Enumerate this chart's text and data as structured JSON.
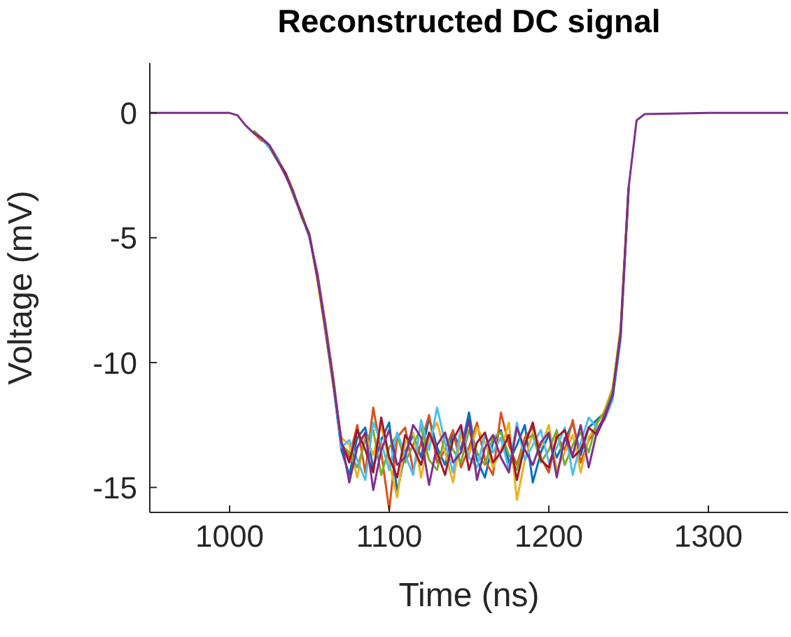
{
  "chart_data": {
    "type": "line",
    "title": "Reconstructed DC signal",
    "xlabel": "Time (ns)",
    "ylabel": "Voltage (mV)",
    "x": [
      950,
      1000,
      1005,
      1010,
      1015,
      1020,
      1025,
      1030,
      1035,
      1040,
      1045,
      1050,
      1055,
      1060,
      1065,
      1070,
      1075,
      1080,
      1085,
      1090,
      1095,
      1100,
      1105,
      1110,
      1115,
      1120,
      1125,
      1130,
      1135,
      1140,
      1145,
      1150,
      1155,
      1160,
      1165,
      1170,
      1175,
      1180,
      1185,
      1190,
      1195,
      1200,
      1205,
      1210,
      1215,
      1220,
      1225,
      1230,
      1235,
      1240,
      1245,
      1250,
      1255,
      1260,
      1300,
      1350
    ],
    "xlim": [
      950,
      1350
    ],
    "xticks": [
      1000,
      1100,
      1200,
      1300
    ],
    "ylim": [
      -16,
      2
    ],
    "yticks": [
      -15,
      -10,
      -5,
      0
    ],
    "grid": false,
    "legend": false,
    "marker": "none",
    "line_style": "solid",
    "series": [
      {
        "color": "#0072bd",
        "values": [
          null,
          null,
          null,
          null,
          -0.8,
          -1.0,
          -1.4,
          -1.9,
          -2.4,
          -3.3,
          -4.1,
          -4.9,
          -6.6,
          -8.6,
          -10.9,
          -13.5,
          -14.5,
          -13.0,
          -12.6,
          -14.2,
          -13.1,
          -12.4,
          -15.2,
          -13.6,
          -12.9,
          -13.8,
          -12.2,
          -13.4,
          -14.1,
          -12.8,
          -13.5,
          -12.0,
          -13.9,
          -14.6,
          -13.2,
          -12.7,
          -14.0,
          -13.3,
          -12.5,
          -14.8,
          -13.6,
          -12.9,
          -13.8,
          -13.1,
          -12.4,
          -13.7,
          -12.6,
          -12.3,
          -12.0,
          -11.2,
          -8.8,
          -3.0,
          null,
          null,
          null,
          null
        ]
      },
      {
        "color": "#d95319",
        "values": [
          null,
          null,
          null,
          null,
          -0.8,
          -1.1,
          -1.3,
          -1.8,
          -2.5,
          -3.2,
          -4.0,
          -5.0,
          -6.4,
          -8.4,
          -10.6,
          -13.2,
          -13.8,
          -12.5,
          -14.4,
          -11.8,
          -13.6,
          -15.9,
          -13.0,
          -12.6,
          -14.3,
          -13.2,
          -12.1,
          -14.0,
          -13.5,
          -12.7,
          -14.2,
          -13.4,
          -12.4,
          -13.9,
          -14.5,
          -12.0,
          -13.3,
          -14.1,
          -13.0,
          -12.6,
          -13.8,
          -14.4,
          -12.9,
          -13.5,
          -12.3,
          -14.0,
          -13.1,
          -12.7,
          -12.2,
          -11.4,
          null,
          null,
          null,
          null,
          null,
          null
        ]
      },
      {
        "color": "#edb120",
        "values": [
          null,
          null,
          null,
          null,
          null,
          null,
          -1.4,
          -1.8,
          -2.4,
          -3.1,
          -4.2,
          -4.8,
          -6.7,
          -8.8,
          -11.0,
          -13.0,
          -13.3,
          -14.6,
          -12.9,
          -13.7,
          -12.5,
          -14.0,
          -15.4,
          -13.2,
          -12.8,
          -14.6,
          -13.0,
          -12.4,
          -13.6,
          -14.8,
          -12.9,
          -13.7,
          -12.6,
          -13.2,
          -14.2,
          -13.5,
          -12.4,
          -15.5,
          -13.9,
          -12.8,
          -13.4,
          -12.5,
          -14.3,
          -13.6,
          -12.9,
          -14.4,
          -13.0,
          -12.5,
          -11.9,
          -11.0,
          -8.6,
          -2.9,
          null,
          null,
          null,
          null
        ]
      },
      {
        "color": "#77ac30",
        "values": [
          null,
          null,
          null,
          null,
          -0.7,
          -1.0,
          -1.4,
          -1.9,
          -2.4,
          -3.3,
          -4.0,
          -4.9,
          -6.6,
          -8.5,
          -10.7,
          -13.3,
          -13.6,
          -14.2,
          -13.1,
          -12.7,
          -14.5,
          -13.4,
          -12.9,
          -14.0,
          -13.3,
          -12.6,
          -13.9,
          -14.3,
          -12.9,
          -13.5,
          -14.0,
          -12.7,
          -13.6,
          -14.1,
          -13.0,
          -12.8,
          -13.7,
          -14.3,
          -13.1,
          -12.9,
          -14.0,
          -13.5,
          -12.7,
          -14.1,
          -13.3,
          -12.8,
          -13.6,
          -12.4,
          -12.0,
          -11.1,
          -8.7,
          -3.0,
          null,
          null,
          null,
          null
        ]
      },
      {
        "color": "#4dbeee",
        "values": [
          null,
          null,
          null,
          null,
          -0.8,
          -1.0,
          -1.4,
          -1.8,
          -2.5,
          -3.2,
          -4.1,
          -5.0,
          -6.5,
          -8.7,
          -10.9,
          -13.4,
          -13.1,
          -13.9,
          -14.7,
          -12.4,
          -13.2,
          -14.3,
          -12.8,
          -13.7,
          -14.5,
          -12.3,
          -13.5,
          -11.8,
          -13.2,
          -14.4,
          -12.6,
          -13.8,
          -14.2,
          -12.9,
          -13.6,
          -13.0,
          -14.3,
          -12.4,
          -13.9,
          -13.3,
          -12.7,
          -14.0,
          -13.4,
          -12.6,
          -14.5,
          -13.2,
          -12.2,
          -12.6,
          -12.3,
          -11.5,
          -9.1,
          -3.1,
          null,
          null,
          null,
          null
        ]
      },
      {
        "color": "#a2142f",
        "values": [
          null,
          null,
          null,
          null,
          -0.8,
          -1.0,
          -1.3,
          -1.9,
          -2.4,
          -3.2,
          -4.1,
          -4.9,
          -6.6,
          -8.6,
          -10.8,
          -13.2,
          -14.0,
          -12.7,
          -13.5,
          -14.4,
          -12.2,
          -13.8,
          -14.6,
          -12.9,
          -13.4,
          -14.1,
          -12.8,
          -13.6,
          -14.5,
          -13.1,
          -12.5,
          -14.3,
          -13.2,
          -12.8,
          -14.0,
          -13.6,
          -12.9,
          -14.7,
          -13.3,
          -12.4,
          -13.9,
          -14.2,
          -13.0,
          -12.7,
          -13.8,
          -13.5,
          -12.6,
          -12.9,
          -12.2,
          -11.3,
          -8.8,
          -3.0,
          null,
          null,
          null,
          null
        ]
      },
      {
        "color": "#7e2f8e",
        "values": [
          0,
          0,
          -0.1,
          -0.5,
          -0.8,
          -1.0,
          -1.3,
          -1.9,
          -2.5,
          -3.2,
          -4.1,
          -4.9,
          -6.5,
          -8.6,
          -10.8,
          -13.1,
          -14.8,
          -13.4,
          -12.8,
          -15.1,
          -13.5,
          -12.7,
          -14.1,
          -13.8,
          -12.5,
          -13.0,
          -14.9,
          -13.3,
          -12.8,
          -14.0,
          -13.6,
          -12.3,
          -14.7,
          -13.4,
          -12.9,
          -13.8,
          -14.4,
          -12.6,
          -13.5,
          -14.1,
          -13.2,
          -12.8,
          -14.6,
          -13.0,
          -13.7,
          -12.5,
          -14.2,
          -12.8,
          -12.1,
          -11.3,
          -8.9,
          -3.0,
          -0.3,
          -0.05,
          0,
          0
        ]
      }
    ]
  }
}
